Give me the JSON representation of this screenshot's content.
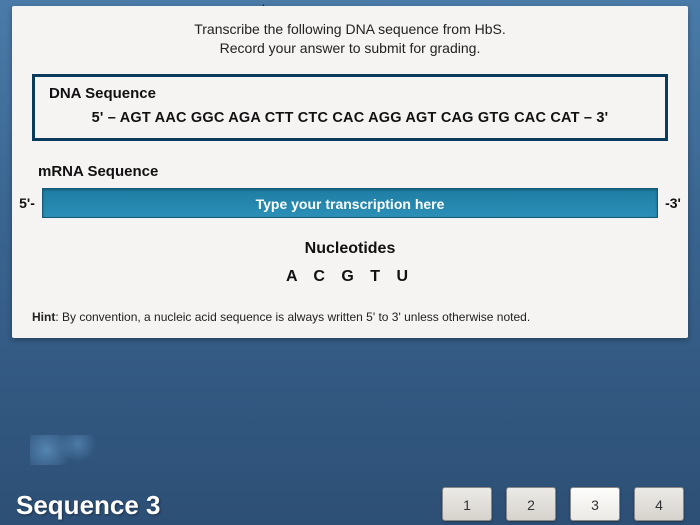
{
  "instruction_line1": "Transcribe the following DNA sequence from HbS.",
  "instruction_line2": "Record your answer to submit for grading.",
  "dna": {
    "title": "DNA Sequence",
    "sequence": "5' – AGT AAC GGC AGA CTT CTC CAC AGG AGT CAG GTG CAC CAT – 3'"
  },
  "mrna": {
    "title": "mRNA Sequence",
    "left_end": "5'-",
    "right_end": "-3'",
    "placeholder": "Type your transcription here"
  },
  "nucleotides": {
    "title": "Nucleotides",
    "letters": "A C G T U"
  },
  "hint_label": "Hint",
  "hint_text": ": By convention, a nucleic acid sequence is always written 5' to 3' unless otherwise noted.",
  "bottom": {
    "sequence_label": "Sequence 3",
    "steps": [
      "1",
      "2",
      "3",
      "4"
    ],
    "active_step_index": 2
  },
  "colors": {
    "card_bg": "#f5f4f2",
    "dna_border": "#0a3a5c",
    "input_bg": "#2b8fb7",
    "page_grad_top": "#4a7ba8",
    "page_grad_bottom": "#2d4f75"
  }
}
